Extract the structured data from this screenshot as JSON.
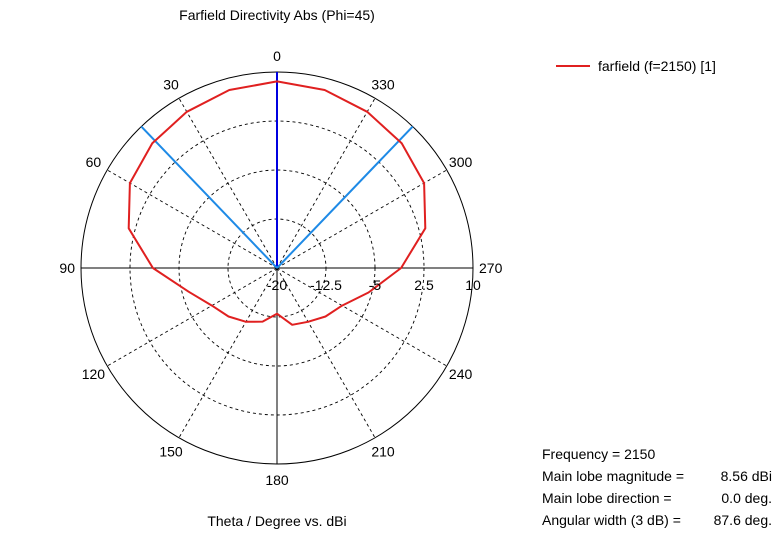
{
  "chart_data": {
    "type": "polar-line",
    "title": "Farfield Directivity Abs (Phi=45)",
    "xlabel": "Theta / Degree vs. dBi",
    "angle_ticks": [
      "0",
      "30",
      "60",
      "90",
      "120",
      "150",
      "180",
      "210",
      "240",
      "270",
      "300",
      "330"
    ],
    "radial_ticks": [
      "-20",
      "-12.5",
      "-5",
      "2.5",
      "10"
    ],
    "rlim": [
      -20,
      10
    ],
    "grid": true,
    "legend_position": "top-right",
    "series": [
      {
        "name": "farfield (f=2150) [1]",
        "color": "#e02020",
        "theta": [
          0,
          15,
          30,
          45,
          60,
          75,
          90,
          105,
          120,
          135,
          150,
          165,
          180,
          195,
          210,
          225,
          240,
          255,
          270,
          285,
          300,
          315,
          330,
          345,
          360
        ],
        "dBi": [
          8.56,
          8.2,
          7.6,
          7.0,
          6.0,
          3.5,
          -1.0,
          -6.0,
          -8.5,
          -9.5,
          -10.5,
          -11.5,
          -13.0,
          -11.0,
          -10.5,
          -9.5,
          -8.5,
          -5.5,
          -1.0,
          3.5,
          6.0,
          7.0,
          7.6,
          8.2,
          8.56
        ]
      }
    ],
    "markers": [
      {
        "angle": 0,
        "color": "#0000e0"
      },
      {
        "angle": 43.8,
        "color": "#1e8ae6"
      },
      {
        "angle": 316.2,
        "color": "#1e8ae6"
      }
    ]
  },
  "info": {
    "frequency_label": "Frequency = 2150",
    "magnitude_label": "Main lobe magnitude =",
    "magnitude_value": "8.56 dBi",
    "direction_label": "Main lobe direction =",
    "direction_value": "0.0 deg.",
    "width_label": "Angular width (3 dB) =",
    "width_value": "87.6 deg."
  }
}
